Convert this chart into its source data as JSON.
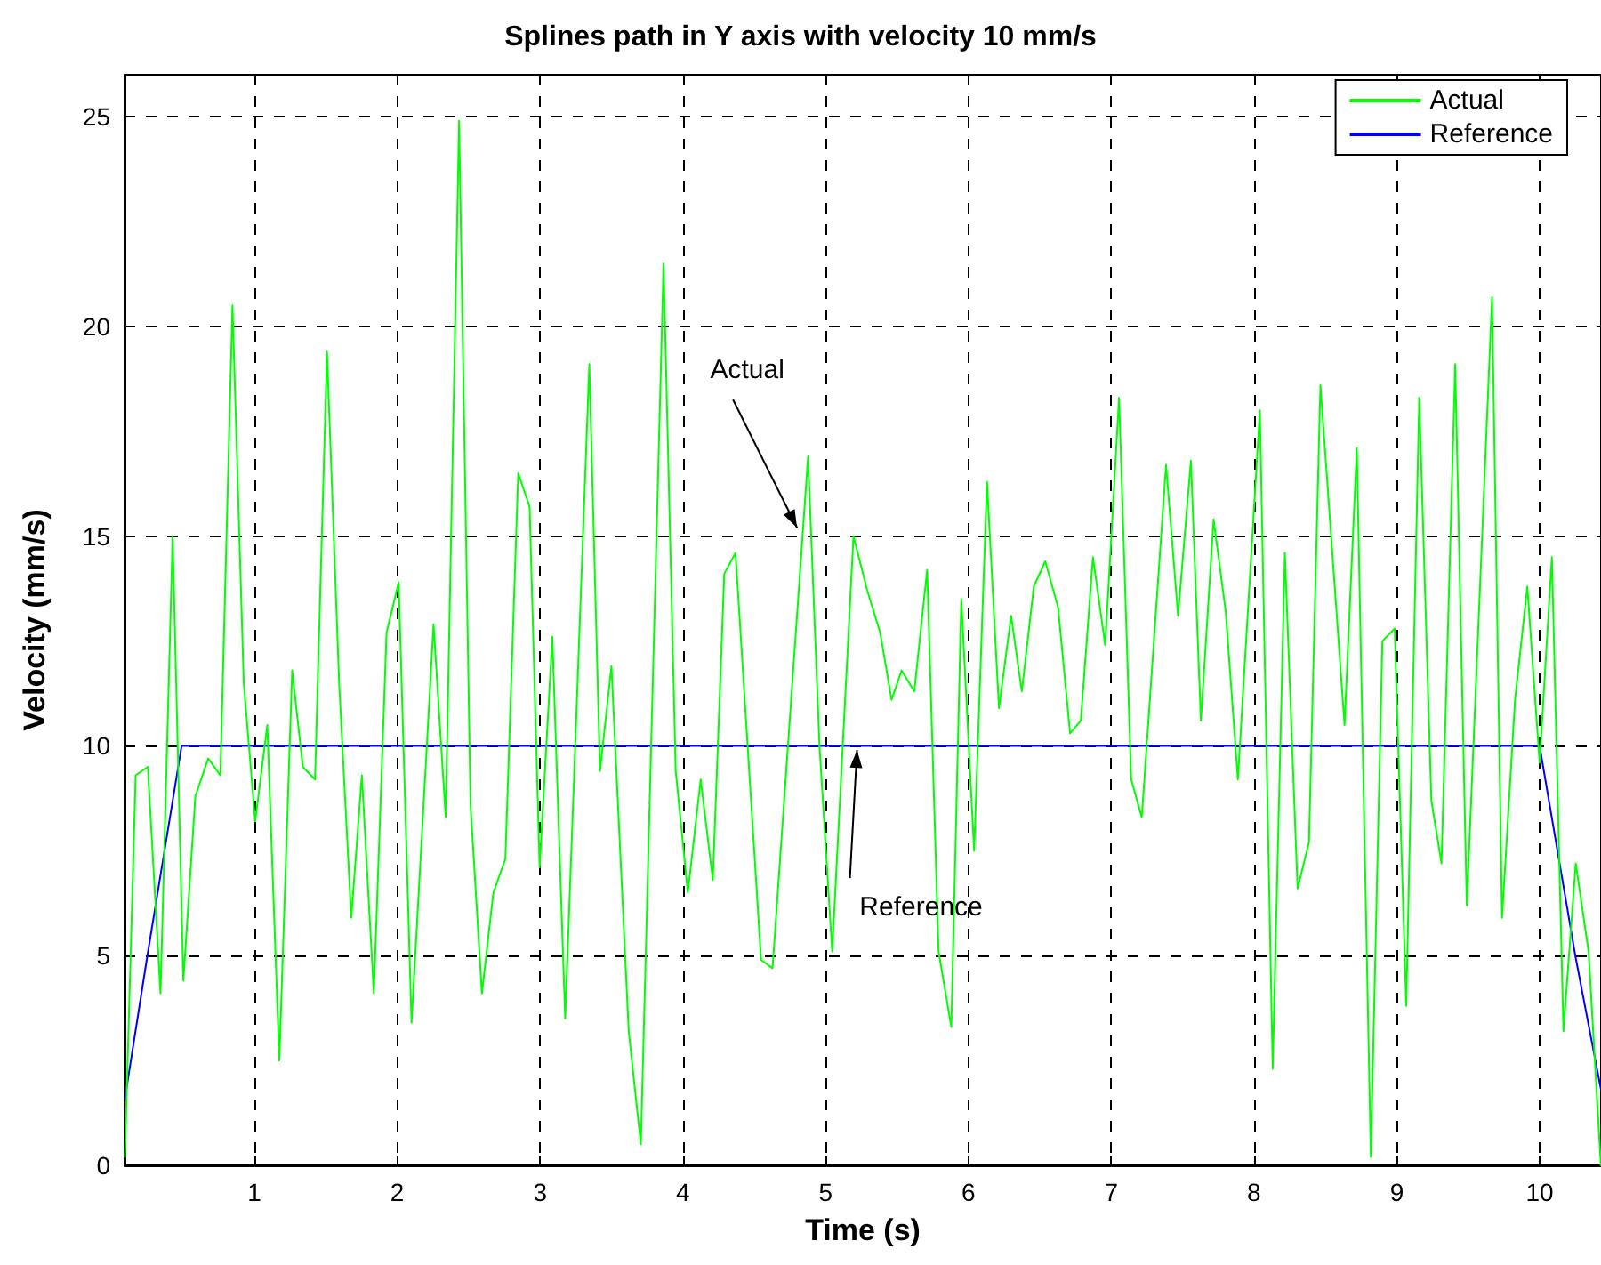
{
  "chart_data": {
    "type": "line",
    "title": "Splines path in Y axis with velocity 10 mm/s",
    "xlabel": "Time (s)",
    "ylabel": "Velocity (mm/s)",
    "xlim": [
      0.09,
      10.43
    ],
    "xticks": [
      1,
      2,
      3,
      4,
      5,
      6,
      7,
      8,
      9,
      10
    ],
    "ylim": [
      0,
      26
    ],
    "yticks": [
      0,
      5,
      10,
      15,
      20,
      25
    ],
    "grid": true,
    "legend": "top right",
    "marker": "none",
    "line_style": "solid",
    "series": [
      {
        "name": "Actual",
        "color": "#00ff00",
        "x": [
          0.093,
          0.168,
          0.253,
          0.342,
          0.427,
          0.502,
          0.586,
          0.676,
          0.761,
          0.846,
          0.925,
          1.005,
          1.09,
          1.174,
          1.264,
          1.339,
          1.424,
          1.508,
          1.593,
          1.678,
          1.752,
          1.836,
          1.925,
          2.01,
          2.1,
          2.254,
          2.339,
          2.433,
          2.513,
          2.593,
          2.673,
          2.757,
          2.847,
          2.927,
          2.997,
          3.086,
          3.176,
          3.345,
          3.42,
          3.5,
          3.621,
          3.706,
          3.865,
          3.95,
          4.035,
          4.125,
          4.21,
          4.29,
          4.369,
          4.548,
          4.628,
          4.877,
          4.957,
          5.046,
          5.195,
          5.292,
          5.382,
          5.462,
          5.532,
          5.621,
          5.711,
          5.791,
          5.88,
          5.95,
          6.04,
          6.13,
          6.214,
          6.299,
          6.374,
          6.458,
          6.538,
          6.628,
          6.712,
          6.787,
          6.872,
          6.958,
          7.055,
          7.14,
          7.214,
          7.384,
          7.468,
          7.558,
          7.628,
          7.717,
          7.802,
          7.887,
          8.041,
          8.131,
          8.216,
          8.305,
          8.385,
          8.465,
          8.634,
          8.72,
          8.818,
          8.899,
          8.985,
          9.066,
          9.157,
          9.242,
          9.313,
          9.409,
          9.49,
          9.667,
          9.737,
          9.828,
          9.914,
          10.0,
          10.086,
          10.167,
          10.253,
          10.343,
          10.429
        ],
        "values": [
          0.2,
          9.3,
          9.5,
          4.1,
          15.0,
          4.4,
          8.8,
          9.7,
          9.3,
          20.5,
          11.5,
          8.2,
          10.5,
          2.5,
          11.8,
          9.5,
          9.2,
          19.4,
          11.5,
          5.9,
          9.3,
          4.1,
          12.7,
          13.9,
          3.4,
          12.9,
          8.3,
          24.9,
          8.6,
          4.1,
          6.5,
          7.3,
          16.5,
          15.7,
          7.1,
          12.6,
          3.5,
          19.1,
          9.4,
          11.9,
          3.2,
          0.5,
          21.5,
          9.4,
          6.5,
          9.2,
          6.8,
          14.1,
          14.6,
          4.9,
          4.7,
          16.9,
          10.0,
          5.1,
          15.0,
          13.7,
          12.7,
          11.1,
          11.8,
          11.3,
          14.2,
          5.1,
          3.3,
          13.5,
          7.5,
          16.3,
          10.9,
          13.1,
          11.3,
          13.8,
          14.4,
          13.3,
          10.3,
          10.6,
          14.5,
          12.4,
          18.3,
          9.2,
          8.3,
          16.7,
          13.1,
          16.8,
          10.6,
          15.4,
          13.2,
          9.2,
          18.0,
          2.3,
          14.6,
          6.6,
          7.7,
          18.6,
          10.5,
          17.1,
          0.2,
          12.5,
          12.8,
          3.8,
          18.3,
          8.7,
          7.2,
          19.1,
          6.2,
          20.7,
          5.9,
          11.1,
          13.8,
          9.6,
          14.5,
          3.2,
          7.2,
          5.1,
          0
        ]
      },
      {
        "name": "Reference",
        "color": "#0000ff",
        "x": [
          0.093,
          0.25,
          0.49,
          10.0,
          10.25,
          10.43
        ],
        "values": [
          1.6,
          5.0,
          10.0,
          10.0,
          5.0,
          1.8
        ]
      }
    ],
    "annotations": [
      {
        "text": "Actual",
        "x": 4.8,
        "y": 15.2
      },
      {
        "text": "Reference",
        "x": 5.22,
        "y": 9.9
      }
    ]
  }
}
